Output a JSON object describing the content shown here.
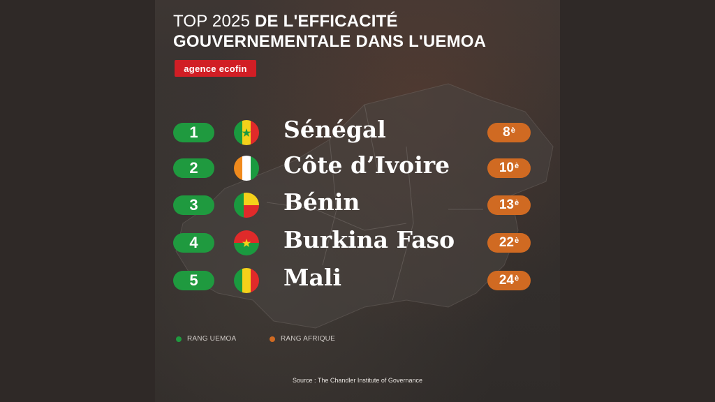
{
  "title": {
    "light": "TOP 2025 ",
    "bold_line1": "DE L'EFFICACITÉ",
    "line2": "GOUVERNEMENTALE DANS L'UEMOA"
  },
  "brand": "agence ecofin",
  "rows": [
    {
      "rank": "1",
      "country": "Sénégal",
      "africa_rank": "8",
      "suffix": "è",
      "flag": "senegal-flag-icon"
    },
    {
      "rank": "2",
      "country": "Côte d’Ivoire",
      "africa_rank": "10",
      "suffix": "è",
      "flag": "cote-divoire-flag-icon"
    },
    {
      "rank": "3",
      "country": "Bénin",
      "africa_rank": "13",
      "suffix": "è",
      "flag": "benin-flag-icon"
    },
    {
      "rank": "4",
      "country": "Burkina Faso",
      "africa_rank": "22",
      "suffix": "è",
      "flag": "burkina-faso-flag-icon"
    },
    {
      "rank": "5",
      "country": "Mali",
      "africa_rank": "24",
      "suffix": "è",
      "flag": "mali-flag-icon"
    }
  ],
  "legend": {
    "uemoa": "RANG UEMOA",
    "afrique": "RANG AFRIQUE"
  },
  "source": "Source : The Chandler Institute of Governance",
  "colors": {
    "uemoa_green": "#1f9a3f",
    "afrique_orange": "#d06a22",
    "brand_red": "#d11e25"
  }
}
